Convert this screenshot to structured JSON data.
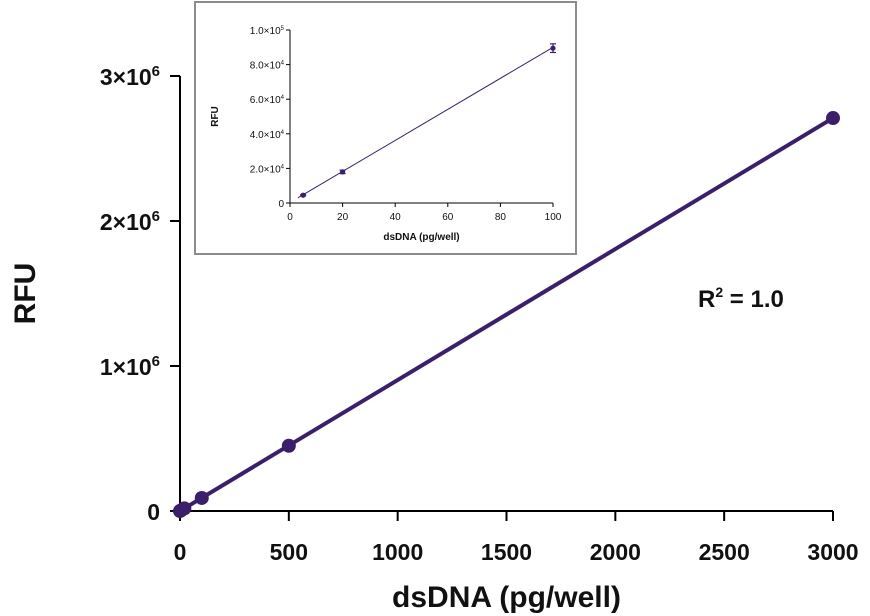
{
  "chart_data": [
    {
      "type": "scatter",
      "title": "",
      "xlabel": "dsDNA (pg/well)",
      "ylabel": "RFU",
      "xlim": [
        0,
        3000
      ],
      "ylim": [
        0,
        3000000
      ],
      "x_ticks": [
        0,
        500,
        1000,
        1500,
        2000,
        2500,
        3000
      ],
      "y_ticks": [
        {
          "value": 0,
          "coef": "0",
          "exp": ""
        },
        {
          "value": 1000000,
          "coef": "1×10",
          "exp": "6"
        },
        {
          "value": 2000000,
          "coef": "2×10",
          "exp": "6"
        },
        {
          "value": 3000000,
          "coef": "3×10",
          "exp": "6"
        }
      ],
      "series": [
        {
          "x": [
            0,
            5,
            20,
            100,
            500,
            3000
          ],
          "y": [
            0,
            4500,
            18000,
            90000,
            450000,
            2710000
          ]
        }
      ],
      "fit_line": {
        "x": [
          0,
          3000
        ],
        "y": [
          0,
          2710000
        ]
      },
      "annotation": {
        "base": "R",
        "sup": "2",
        "rest": " = 1.0"
      },
      "color": "#3B1F6B",
      "grid": false,
      "legend": "none"
    },
    {
      "type": "scatter",
      "title": "",
      "xlabel": "dsDNA (pg/well)",
      "ylabel": "RFU",
      "xlim": [
        0,
        100
      ],
      "ylim": [
        0,
        100000
      ],
      "x_ticks": [
        0,
        20,
        40,
        60,
        80,
        100
      ],
      "y_ticks": [
        {
          "value": 0,
          "coef": "0",
          "exp": ""
        },
        {
          "value": 20000,
          "coef": "2.0×10",
          "exp": "4"
        },
        {
          "value": 40000,
          "coef": "4.0×10",
          "exp": "4"
        },
        {
          "value": 60000,
          "coef": "6.0×10",
          "exp": "4"
        },
        {
          "value": 80000,
          "coef": "8.0×10",
          "exp": "4"
        },
        {
          "value": 100000,
          "coef": "1.0×10",
          "exp": "5"
        }
      ],
      "series": [
        {
          "x": [
            5,
            20,
            100
          ],
          "y": [
            4500,
            18000,
            89500
          ],
          "error": [
            400,
            1000,
            2500
          ]
        }
      ],
      "fit_line": {
        "x": [
          3,
          100
        ],
        "y": [
          3000,
          90000
        ]
      },
      "color": "#3B1F6B",
      "grid": false,
      "legend": "none"
    }
  ]
}
